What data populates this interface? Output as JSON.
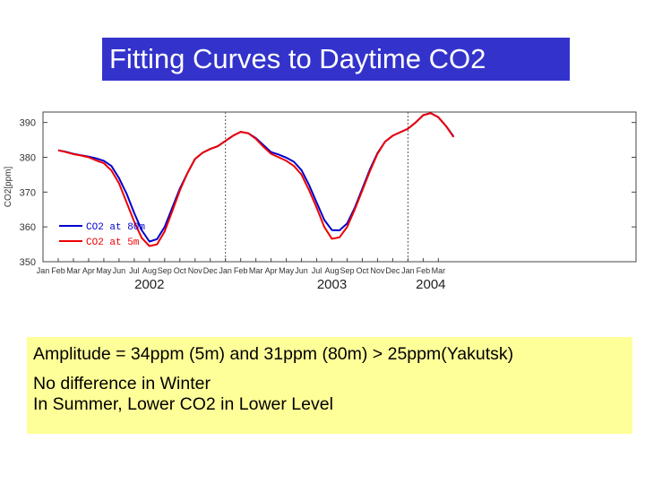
{
  "slide": {
    "title": "Fitting Curves to Daytime CO2",
    "notes": [
      "Amplitude = 34ppm (5m) and 31ppm (80m) > 25ppm(Yakutsk)",
      "No difference in Winter",
      "In Summer, Lower CO2 in Lower Level"
    ]
  },
  "chart_data": {
    "type": "line",
    "ylabel": "CO2[ppm]",
    "ylim": [
      350,
      393
    ],
    "yticks": [
      350,
      360,
      370,
      380,
      390
    ],
    "xlim": [
      0,
      39
    ],
    "month_labels": [
      "Jan",
      "Feb",
      "Mar",
      "Apr",
      "May",
      "Jun",
      "Jul",
      "Aug",
      "Sep",
      "Oct",
      "Nov",
      "Dec",
      "Jan",
      "Feb",
      "Mar",
      "Apr",
      "May",
      "Jun",
      "Jul",
      "Aug",
      "Sep",
      "Oct",
      "Nov",
      "Dec",
      "Jan",
      "Feb",
      "Mar"
    ],
    "year_labels": [
      {
        "label": "2002",
        "x": 7
      },
      {
        "label": "2003",
        "x": 19
      },
      {
        "label": "2004",
        "x": 25.5
      }
    ],
    "year_dividers": [
      12,
      24
    ],
    "x": [
      1,
      1.5,
      2,
      2.5,
      3,
      3.5,
      4,
      4.5,
      5,
      5.5,
      6,
      6.5,
      7,
      7.5,
      8,
      8.5,
      9,
      9.5,
      10,
      10.5,
      11,
      11.5,
      12,
      12.5,
      13,
      13.5,
      14,
      14.5,
      15,
      15.5,
      16,
      16.5,
      17,
      17.5,
      18,
      18.5,
      19,
      19.5,
      20,
      20.5,
      21,
      21.5,
      22,
      22.5,
      23,
      23.5,
      24,
      24.5,
      25,
      25.5,
      26,
      26.5,
      27
    ],
    "legend": {
      "position": "lower-left"
    },
    "series": [
      {
        "name": "CO2 at 80m",
        "color": "#0000cc",
        "values": [
          382,
          381.6,
          381,
          380.6,
          380.2,
          379.7,
          379,
          377.5,
          374,
          369.5,
          364,
          359,
          355.8,
          356.5,
          360,
          365.5,
          371,
          375.5,
          379.5,
          381.3,
          382.4,
          383.2,
          384.7,
          386.2,
          387.3,
          386.9,
          385.5,
          383.5,
          381.5,
          380.8,
          379.9,
          378.7,
          376.3,
          372,
          367,
          362,
          359.1,
          359,
          361,
          365.5,
          371,
          376.5,
          381.2,
          384.5,
          386.2,
          387.2,
          388.2,
          390,
          392.1,
          392.7,
          391.5,
          389,
          386
        ]
      },
      {
        "name": "CO2 at 5m",
        "color": "#ee0000",
        "values": [
          382,
          381.5,
          380.9,
          380.5,
          380,
          379.1,
          378.3,
          376.2,
          372.5,
          367,
          361.5,
          356.8,
          354.5,
          355,
          358.7,
          364.5,
          370.5,
          375.5,
          379.5,
          381.3,
          382.4,
          383.2,
          384.7,
          386.2,
          387.3,
          386.9,
          385.3,
          383,
          381,
          380,
          379,
          377.5,
          375,
          370.5,
          365.5,
          360,
          356.6,
          357,
          360,
          365,
          370.5,
          376,
          381,
          384.5,
          386.2,
          387.2,
          388.2,
          390,
          392.1,
          392.7,
          391.5,
          389,
          385.8
        ]
      }
    ]
  }
}
